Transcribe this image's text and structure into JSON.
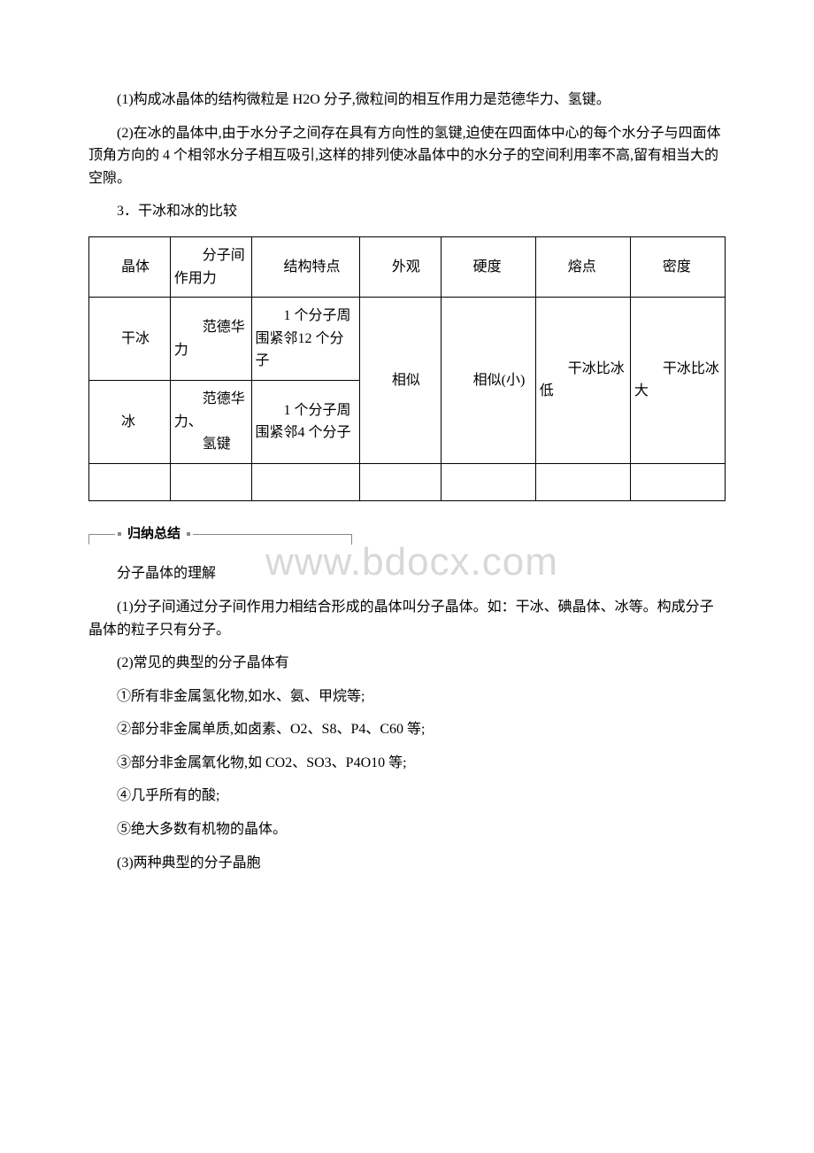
{
  "paragraphs": {
    "p1": "(1)构成冰晶体的结构微粒是 H2O 分子,微粒间的相互作用力是范德华力、氢键。",
    "p2": "(2)在冰的晶体中,由于水分子之间存在具有方向性的氢键,迫使在四面体中心的每个水分子与四面体顶角方向的 4 个相邻水分子相互吸引,这样的排列使冰晶体中的水分子的空间利用率不高,留有相当大的空隙。",
    "p3": "3．干冰和冰的比较",
    "p4": "分子晶体的理解",
    "p5": "(1)分子间通过分子间作用力相结合形成的晶体叫分子晶体。如：干冰、碘晶体、冰等。构成分子晶体的粒子只有分子。",
    "p6": "(2)常见的典型的分子晶体有",
    "p7": "①所有非金属氢化物,如水、氨、甲烷等;",
    "p8": "②部分非金属单质,如卤素、O2、S8、P4、C60 等;",
    "p9": "③部分非金属氧化物,如 CO2、SO3、P4O10 等;",
    "p10": "④几乎所有的酸;",
    "p11": "⑤绝大多数有机物的晶体。",
    "p12": "(3)两种典型的分子晶胞"
  },
  "table": {
    "headers": {
      "c1": "晶体",
      "c2": "分子间作用力",
      "c3": "结构特点",
      "c4": "外观",
      "c5": "硬度",
      "c6": "熔点",
      "c7": "密度"
    },
    "row1": {
      "c1": "干冰",
      "c2": "范德华力",
      "c3": "1 个分子周围紧邻12 个分子"
    },
    "row2": {
      "c1": "冰",
      "c2_line1": "范德华力、",
      "c2_line2": "氢键",
      "c3": "1 个分子周围紧邻4 个分子"
    },
    "merged": {
      "c4": "相似",
      "c5": "相似(小)",
      "c6": "干冰比冰低",
      "c7": "干冰比冰大"
    }
  },
  "summary_title": "归纳总结",
  "watermark": "www.bdocx.com",
  "style": {
    "background_color": "#ffffff",
    "text_color": "#000000",
    "border_color": "#000000",
    "watermark_color": "#d8d8d8",
    "summary_line_color": "#888888",
    "body_font_size": 16,
    "summary_font_size": 15,
    "watermark_font_size": 44
  }
}
